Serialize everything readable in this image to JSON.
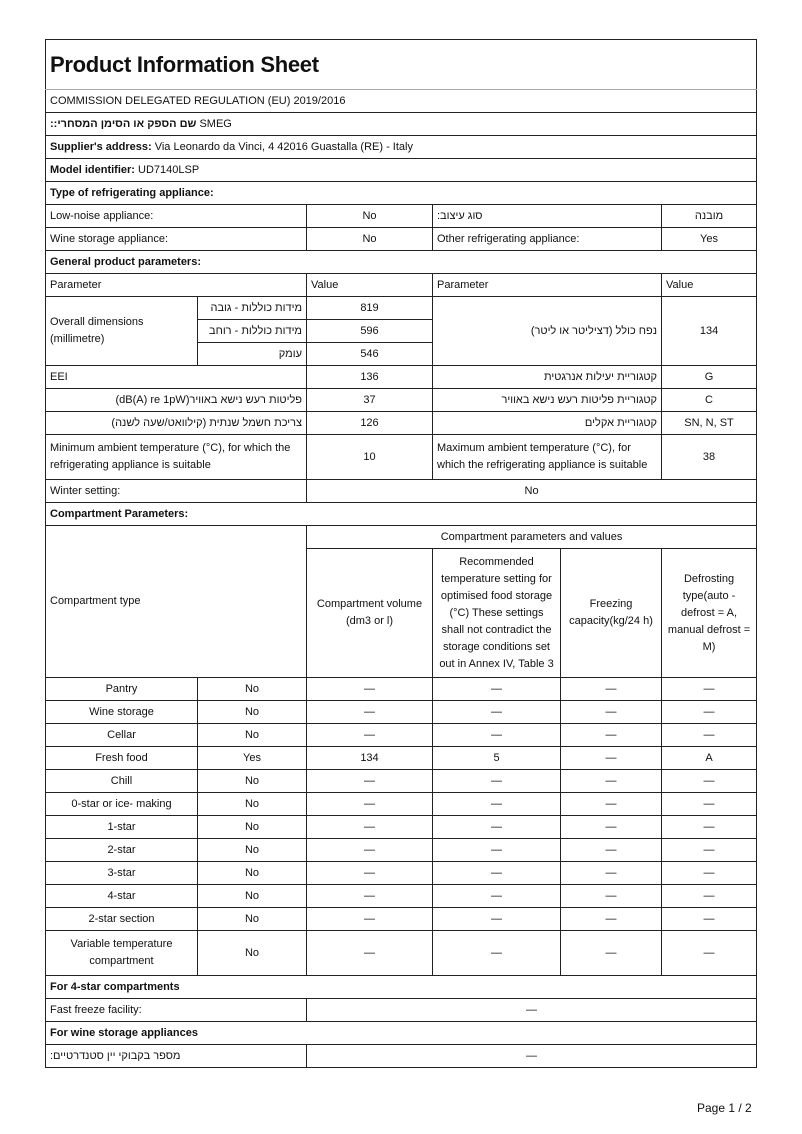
{
  "title": "Product Information Sheet",
  "regulation": "COMMISSION DELEGATED REGULATION (EU) 2019/2016",
  "supplier_name_label": "שם הספק או הסימן המסחרי::",
  "supplier_name": "SMEG",
  "address_label": "Supplier's address:",
  "address": "Via Leonardo da Vinci, 4 42016 Guastalla (RE) - Italy",
  "model_label": "Model identifier:",
  "model": "UD7140LSP",
  "type_heading": "Type of refrigerating appliance:",
  "type": {
    "low_noise_label": "Low-noise appliance:",
    "low_noise": "No",
    "design_label": "סוג עיצוב:",
    "design": "מובנה",
    "wine_label": "Wine storage appliance:",
    "wine": "No",
    "other_label": "Other refrigerating appliance:",
    "other": "Yes"
  },
  "general_heading": "General product parameters:",
  "general": {
    "h_param": "Parameter",
    "h_value": "Value",
    "dims_label": "Overall dimensions (millimetre)",
    "height_label": "מידות כוללות - גובה",
    "height": "819",
    "width_label": "מידות כוללות - רוחב",
    "width": "596",
    "depth_label": "עומק",
    "depth": "546",
    "volume_label": "נפח כולל (דציליטר או ליטר)",
    "volume": "134",
    "eei_label": "EEI",
    "eei": "136",
    "energy_class_label": "קטגוריית יעילות אנרגטית",
    "energy_class": "G",
    "noise_label": "פליטות רעש נישא באוויר(dB(A) re 1pW)",
    "noise": "37",
    "noise_class_label": "קטגוריית פליטות רעש נישא באוויר",
    "noise_class": "C",
    "consumption_label": "צריכת חשמל שנתית (קילוואט/שעה לשנה)",
    "consumption": "126",
    "climate_label": "קטגוריית אקלים",
    "climate": "SN, N, ST",
    "min_temp_label": "Minimum ambient temperature (°C), for which the refrigerating appliance is suitable",
    "min_temp": "10",
    "max_temp_label": "Maximum ambient temperature (°C), for which the refrigerating appliance is suitable",
    "max_temp": "38",
    "winter_label": "Winter setting:",
    "winter": "No"
  },
  "compartment_heading": "Compartment Parameters:",
  "compartment": {
    "type_label": "Compartment type",
    "group_label": "Compartment parameters and values",
    "col_volume": "Compartment volume (dm3 or l)",
    "col_temp": "Recommended temperature setting for optimised food storage (°C) These settings shall not contradict the storage conditions set out in Annex IV, Table 3",
    "col_freezing": "Freezing capacity(kg/24 h)",
    "col_defrost": "Defrosting type(auto - defrost = A, manual defrost = M)",
    "rows": [
      [
        "Pantry",
        "No",
        "—",
        "—",
        "—",
        "—"
      ],
      [
        "Wine storage",
        "No",
        "—",
        "—",
        "—",
        "—"
      ],
      [
        "Cellar",
        "No",
        "—",
        "—",
        "—",
        "—"
      ],
      [
        "Fresh food",
        "Yes",
        "134",
        "5",
        "—",
        "A"
      ],
      [
        "Chill",
        "No",
        "—",
        "—",
        "—",
        "—"
      ],
      [
        "0-star or ice- making",
        "No",
        "—",
        "—",
        "—",
        "—"
      ],
      [
        "1-star",
        "No",
        "—",
        "—",
        "—",
        "—"
      ],
      [
        "2-star",
        "No",
        "—",
        "—",
        "—",
        "—"
      ],
      [
        "3-star",
        "No",
        "—",
        "—",
        "—",
        "—"
      ],
      [
        "4-star",
        "No",
        "—",
        "—",
        "—",
        "—"
      ],
      [
        "2-star section",
        "No",
        "—",
        "—",
        "—",
        "—"
      ],
      [
        "Variable temperature compartment",
        "No",
        "—",
        "—",
        "—",
        "—"
      ]
    ]
  },
  "four_star_heading": "For 4-star compartments",
  "fast_freeze_label": "Fast freeze facility:",
  "fast_freeze": "—",
  "wine_heading": "For wine storage appliances",
  "bottles_label": "מספר בקבוקי יין סטנדרטיים:",
  "bottles": "—",
  "page": "Page 1 / 2"
}
